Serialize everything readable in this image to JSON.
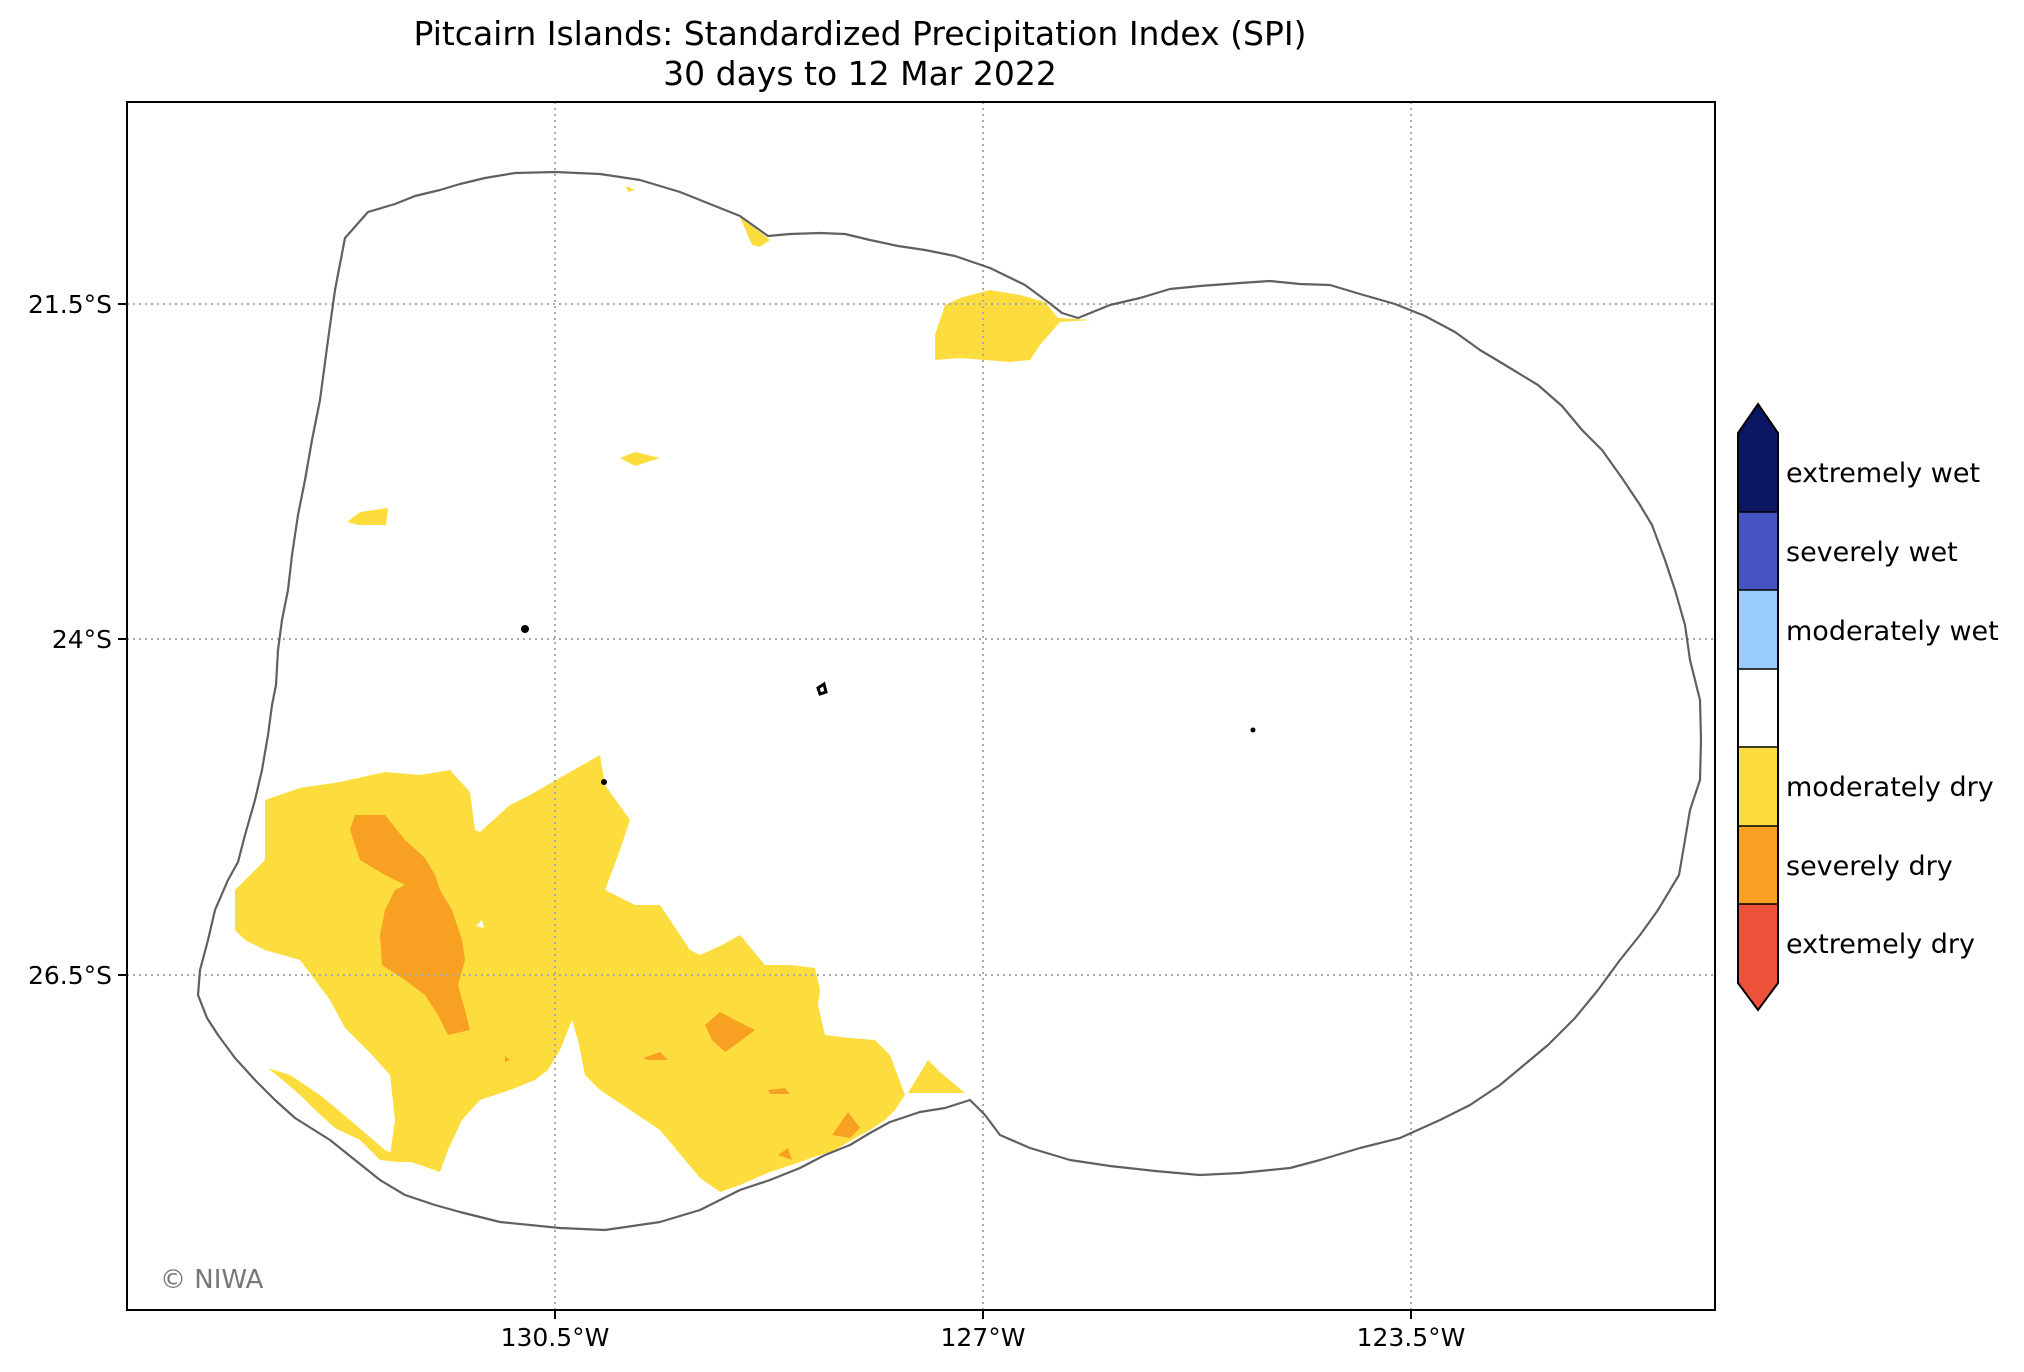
{
  "title": {
    "line1": "Pitcairn Islands: Standardized Precipitation Index (SPI)",
    "line2": "30 days to 12 Mar 2022"
  },
  "axes": {
    "lat_ticks": [
      "21.5°S",
      "24°S",
      "26.5°S"
    ],
    "lon_ticks": [
      "130.5°W",
      "127°W",
      "123.5°W"
    ]
  },
  "credit": "© NIWA",
  "legend": {
    "items": [
      {
        "label": "extremely wet",
        "color": "#0b1763"
      },
      {
        "label": "severely wet",
        "color": "#4654c2"
      },
      {
        "label": "moderately wet",
        "color": "#99ccfd"
      },
      {
        "label": "",
        "color": "#ffffff"
      },
      {
        "label": "moderately dry",
        "color": "#fddd3e"
      },
      {
        "label": "severely dry",
        "color": "#f7a021"
      },
      {
        "label": "extremely dry",
        "color": "#ee513a"
      }
    ]
  },
  "colors": {
    "moderately_dry": "#fddd3e",
    "severely_dry": "#f7a021",
    "eez_outline": "#606060",
    "grid": "#aaaaaa"
  }
}
